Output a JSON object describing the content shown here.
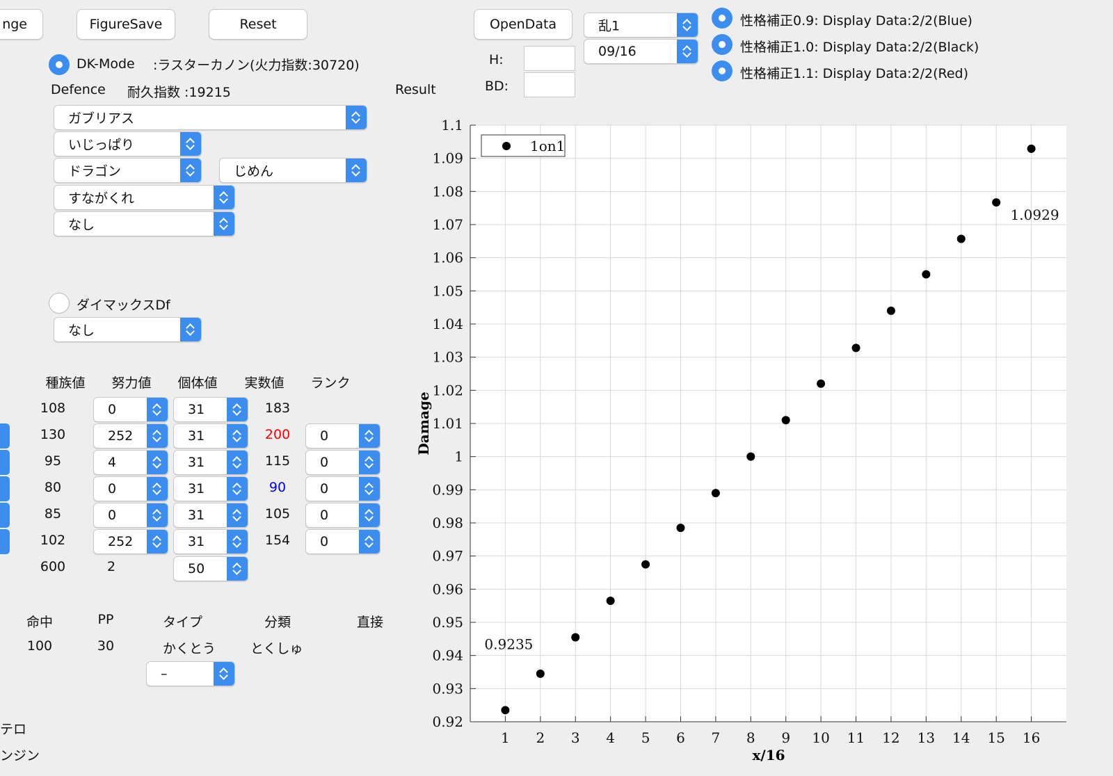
{
  "toolbar": {
    "range_label": "nge",
    "figure_save_label": "FigureSave",
    "reset_label": "Reset",
    "open_data_label": "OpenData"
  },
  "mode": {
    "dk_mode_label": "DK-Mode",
    "attack_info": ":ラスターカノン(火力指数:30720)",
    "defence_label": "Defence",
    "durability": "耐久指数 :19215",
    "result_label": "Result"
  },
  "defence": {
    "pokemon": "ガブリアス",
    "nature": "いじっぱり",
    "type1": "ドラゴン",
    "type2": "じめん",
    "ability": "すながくれ",
    "item": "なし"
  },
  "dynamax": {
    "label": "ダイマックスDf",
    "value": "なし"
  },
  "stats": {
    "headers": [
      "種族値",
      "努力値",
      "個体値",
      "実数値",
      "ランク"
    ],
    "rows": [
      {
        "base": "108",
        "ev": "0",
        "iv": "31",
        "actual": "183",
        "rank": ""
      },
      {
        "base": "130",
        "ev": "252",
        "iv": "31",
        "actual": "200",
        "rank": "0"
      },
      {
        "base": "95",
        "ev": "4",
        "iv": "31",
        "actual": "115",
        "rank": "0"
      },
      {
        "base": "80",
        "ev": "0",
        "iv": "31",
        "actual": "90",
        "rank": "0"
      },
      {
        "base": "85",
        "ev": "0",
        "iv": "31",
        "actual": "105",
        "rank": "0"
      },
      {
        "base": "102",
        "ev": "252",
        "iv": "31",
        "actual": "154",
        "rank": "0"
      }
    ],
    "total_base": "600",
    "total_ev": "2",
    "level": "50",
    "up_color": "#ff0000",
    "down_color": "#0000ff"
  },
  "move": {
    "headers": [
      "命中",
      "PP",
      "タイプ",
      "分類",
      "直接"
    ],
    "accuracy": "100",
    "pp": "30",
    "type": "かくとう",
    "category": "とくしゅ",
    "option": "–"
  },
  "left_cut": {
    "line1": "テロ",
    "line2": "ンジン"
  },
  "hp_panel": {
    "h_label": "H:",
    "bd_label": "BD:",
    "h_value": "",
    "bd_value": ""
  },
  "result_select": {
    "ran": "乱1",
    "fraction": "09/16"
  },
  "display_options": [
    {
      "label": "性格補正0.9: Display Data:2/2(Blue)"
    },
    {
      "label": "性格補正1.0: Display Data:2/2(Black)"
    },
    {
      "label": "性格補正1.1: Display Data:2/2(Red)"
    }
  ],
  "chart_data": {
    "type": "scatter",
    "xlabel": "x/16",
    "ylabel": "Damage",
    "xlim": [
      0,
      17
    ],
    "ylim": [
      0.92,
      1.1
    ],
    "x_ticks": [
      1,
      2,
      3,
      4,
      5,
      6,
      7,
      8,
      9,
      10,
      11,
      12,
      13,
      14,
      15,
      16
    ],
    "y_ticks": [
      "0.92",
      "0.93",
      "0.94",
      "0.95",
      "0.96",
      "0.97",
      "0.98",
      "0.99",
      "1",
      "1.01",
      "1.02",
      "1.03",
      "1.04",
      "1.05",
      "1.06",
      "1.07",
      "1.08",
      "1.09",
      "1.1"
    ],
    "grid": true,
    "legend_position": "top-left",
    "series": [
      {
        "name": "1on1",
        "color": "#000000",
        "x": [
          1,
          2,
          3,
          4,
          5,
          6,
          7,
          8,
          9,
          10,
          11,
          12,
          13,
          14,
          15,
          16
        ],
        "y": [
          0.9235,
          0.9345,
          0.9455,
          0.9565,
          0.9675,
          0.9785,
          0.989,
          1.0,
          1.011,
          1.022,
          1.0328,
          1.044,
          1.055,
          1.0657,
          1.0767,
          1.0929
        ]
      }
    ],
    "annotations": [
      "0.9235",
      "1.0929"
    ]
  }
}
